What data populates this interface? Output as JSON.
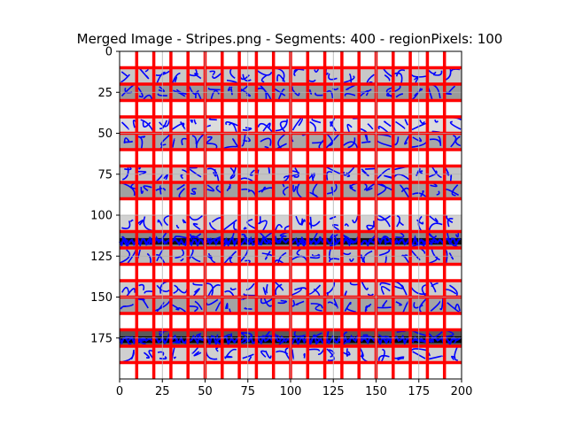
{
  "chart_data": {
    "type": "image",
    "title": "Merged Image - Stripes.png - Segments: 400 - regionPixels: 100",
    "xlim": [
      0,
      200
    ],
    "ylim": [
      200,
      0
    ],
    "y_inverted": true,
    "x_ticks": [
      0,
      25,
      50,
      75,
      100,
      125,
      150,
      175,
      200
    ],
    "y_ticks": [
      0,
      25,
      50,
      75,
      100,
      125,
      150,
      175
    ],
    "grid": true,
    "image_size": [
      200,
      200
    ],
    "stripes": [
      {
        "y0": 10,
        "y1": 20,
        "shade": "#c8c8c8"
      },
      {
        "y0": 20,
        "y1": 30,
        "shade": "#9a9a9a"
      },
      {
        "y0": 40,
        "y1": 50,
        "shade": "#dcdcdc"
      },
      {
        "y0": 50,
        "y1": 60,
        "shade": "#a8a8a8"
      },
      {
        "y0": 70,
        "y1": 80,
        "shade": "#c4c4c4"
      },
      {
        "y0": 80,
        "y1": 90,
        "shade": "#a0a0a0"
      },
      {
        "y0": 100,
        "y1": 110,
        "shade": "#d2d2d2"
      },
      {
        "y0": 110,
        "y1": 120,
        "shade": "#8a8a8a"
      },
      {
        "y0": 120,
        "y1": 130,
        "shade": "#bcbcbc"
      },
      {
        "y0": 140,
        "y1": 150,
        "shade": "#cccccc"
      },
      {
        "y0": 150,
        "y1": 160,
        "shade": "#a4a4a4"
      },
      {
        "y0": 170,
        "y1": 180,
        "shade": "#5a5a5a"
      },
      {
        "y0": 180,
        "y1": 190,
        "shade": "#d0d0d0"
      }
    ],
    "dark_bands": [
      {
        "y": 116,
        "color": "#111111"
      },
      {
        "y": 176,
        "color": "#000000"
      }
    ],
    "segment_boundaries": {
      "color": "#ff0000",
      "columns_x": [
        10,
        20,
        30,
        40,
        50,
        60,
        70,
        80,
        90,
        100,
        110,
        120,
        130,
        140,
        150,
        160,
        170,
        180,
        190
      ],
      "rows_y": [
        10,
        20,
        30,
        40,
        50,
        60,
        70,
        80,
        90,
        110,
        120,
        130,
        140,
        150,
        160,
        170,
        180,
        190
      ],
      "x_extent": [
        10,
        200
      ],
      "y_extent": [
        0,
        200
      ]
    },
    "contour_color": "#0000ff",
    "contour_dense_rows": [
      116,
      176
    ]
  }
}
